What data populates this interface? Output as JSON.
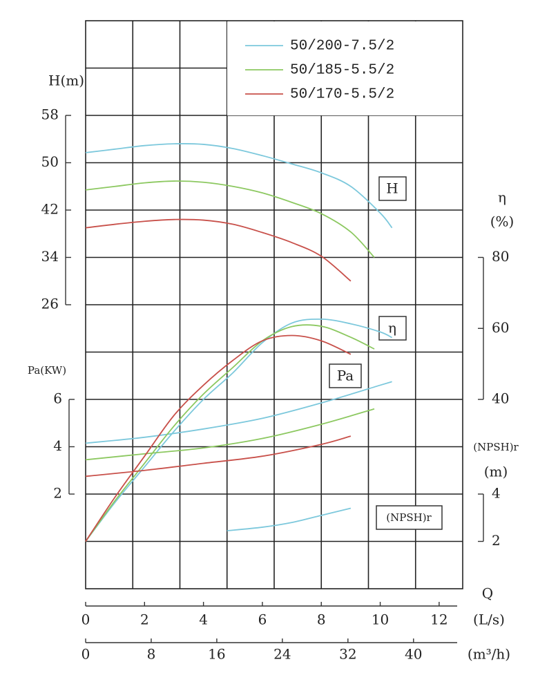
{
  "chart_data": {
    "type": "line",
    "legend_position": "upper right",
    "labels": {
      "h_axis": "H(m)",
      "pa_axis": "Pa(KW)",
      "eta_axis": "η",
      "eta_unit": "(%)",
      "npsh_axis": "(NPSH)r",
      "npsh_unit": "(m)",
      "q": "Q",
      "q_unit": "(L/s)",
      "q2_unit": "(m³/h)",
      "box_h": "H",
      "box_eta": "η",
      "box_pa": "Pa",
      "box_npsh": "(NPSH)r"
    },
    "xlim": [
      0,
      12.8
    ],
    "xticks": [
      0,
      2,
      4,
      6,
      8,
      10,
      12
    ],
    "x2lim": [
      0,
      46
    ],
    "x2ticks": [
      0,
      8,
      16,
      24,
      32,
      40
    ],
    "h_lim": [
      26,
      58
    ],
    "h_ticks": [
      26,
      34,
      42,
      50,
      58
    ],
    "pa_lim": [
      2,
      6
    ],
    "pa_ticks": [
      2,
      4,
      6
    ],
    "eta_lim": [
      40,
      80
    ],
    "eta_ticks": [
      40,
      60,
      80
    ],
    "npsh_lim": [
      2,
      4
    ],
    "npsh_ticks": [
      2,
      4
    ],
    "series": [
      {
        "name": "50/200-7.5/2",
        "color": "#7cc8dc",
        "h_x": [
          0,
          1,
          2,
          3,
          4,
          5,
          6,
          7,
          8,
          9,
          10,
          10.4
        ],
        "h": [
          51.7,
          52.3,
          52.9,
          53.2,
          53.1,
          52.4,
          51.2,
          49.8,
          48.3,
          46.0,
          41.5,
          39.0
        ],
        "eta_x": [
          0,
          1,
          2,
          3,
          4,
          5,
          6,
          7,
          8,
          9,
          10,
          10.4
        ],
        "eta": [
          0,
          11,
          21,
          31,
          40,
          47.5,
          56,
          61.5,
          62.6,
          61.3,
          59,
          57.4
        ],
        "pa_x": [
          0,
          2,
          4,
          6,
          8,
          10,
          10.4
        ],
        "pa": [
          4.15,
          4.4,
          4.75,
          5.2,
          5.85,
          6.6,
          6.75
        ],
        "npsh_x": [
          4.8,
          6,
          7,
          8,
          9
        ],
        "npsh": [
          2.45,
          2.6,
          2.8,
          3.1,
          3.4
        ]
      },
      {
        "name": "50/185-5.5/2",
        "color": "#8cc860",
        "h_x": [
          0,
          1,
          2,
          3,
          4,
          5,
          6,
          7,
          8,
          9,
          9.8
        ],
        "h": [
          45.4,
          46.0,
          46.6,
          46.9,
          46.7,
          46.0,
          44.9,
          43.3,
          41.4,
          38.3,
          34.0
        ],
        "eta_x": [
          0,
          1,
          2,
          3,
          4,
          5,
          6,
          7,
          8,
          9,
          9.8
        ],
        "eta": [
          0,
          11.5,
          22,
          32.5,
          41.5,
          49,
          56.5,
          60.5,
          60.6,
          57.5,
          54.2
        ],
        "pa_x": [
          0,
          2,
          4,
          6,
          8,
          9.8
        ],
        "pa": [
          3.45,
          3.7,
          3.95,
          4.35,
          4.95,
          5.6
        ]
      },
      {
        "name": "50/170-5.5/2",
        "color": "#c8504a",
        "h_x": [
          0,
          1,
          2,
          3,
          4,
          5,
          6,
          7,
          8,
          9
        ],
        "h": [
          39.0,
          39.6,
          40.1,
          40.4,
          40.3,
          39.6,
          38.2,
          36.5,
          34.2,
          30.0
        ],
        "eta_x": [
          0,
          1,
          2,
          3,
          4,
          5,
          6,
          7,
          8,
          9
        ],
        "eta": [
          0,
          12.5,
          24,
          35.5,
          44,
          51,
          56.5,
          58,
          56.5,
          52.7
        ],
        "pa_x": [
          0,
          2,
          4,
          6,
          8,
          9
        ],
        "pa": [
          2.75,
          3.0,
          3.3,
          3.6,
          4.1,
          4.45
        ]
      }
    ]
  }
}
